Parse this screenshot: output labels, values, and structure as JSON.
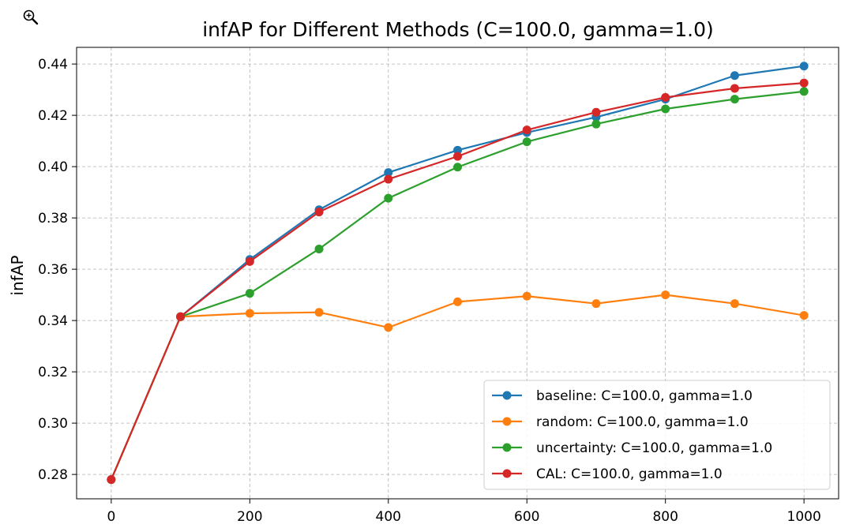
{
  "toolbar": {
    "zoom_icon": "zoom-in-magnifier-icon"
  },
  "chart_data": {
    "type": "line",
    "title": "infAP for Different Methods (C=100.0, gamma=1.0)",
    "xlabel": "",
    "ylabel": "infAP",
    "x": [
      0,
      100,
      200,
      300,
      400,
      500,
      600,
      700,
      800,
      900,
      1000
    ],
    "xlim": [
      -50,
      1050
    ],
    "ylim": [
      0.2705,
      0.4465
    ],
    "xticks": [
      0,
      200,
      400,
      600,
      800,
      1000
    ],
    "yticks": [
      0.28,
      0.3,
      0.32,
      0.34,
      0.36,
      0.38,
      0.4,
      0.42,
      0.44
    ],
    "ytick_labels": [
      "0.28",
      "0.30",
      "0.32",
      "0.34",
      "0.36",
      "0.38",
      "0.40",
      "0.42",
      "0.44"
    ],
    "grid": true,
    "legend_position": "lower-right",
    "series": [
      {
        "name": "baseline: C=100.0, gamma=1.0",
        "color": "#1f77b4",
        "values": [
          0.278,
          0.3415,
          0.3638,
          0.3832,
          0.3977,
          0.4064,
          0.4133,
          0.4193,
          0.4263,
          0.4355,
          0.4392
        ]
      },
      {
        "name": "random: C=100.0, gamma=1.0",
        "color": "#ff7f0e",
        "values": [
          0.278,
          0.3415,
          0.3428,
          0.3432,
          0.3373,
          0.3473,
          0.3495,
          0.3466,
          0.35,
          0.3466,
          0.342
        ]
      },
      {
        "name": "uncertainty: C=100.0, gamma=1.0",
        "color": "#2ca02c",
        "values": [
          0.278,
          0.3415,
          0.3506,
          0.3679,
          0.3877,
          0.3998,
          0.4097,
          0.4166,
          0.4225,
          0.4263,
          0.4293
        ]
      },
      {
        "name": "CAL: C=100.0, gamma=1.0",
        "color": "#d62728",
        "values": [
          0.278,
          0.3415,
          0.363,
          0.3823,
          0.3951,
          0.404,
          0.4143,
          0.4212,
          0.427,
          0.4305,
          0.4326
        ]
      }
    ]
  }
}
